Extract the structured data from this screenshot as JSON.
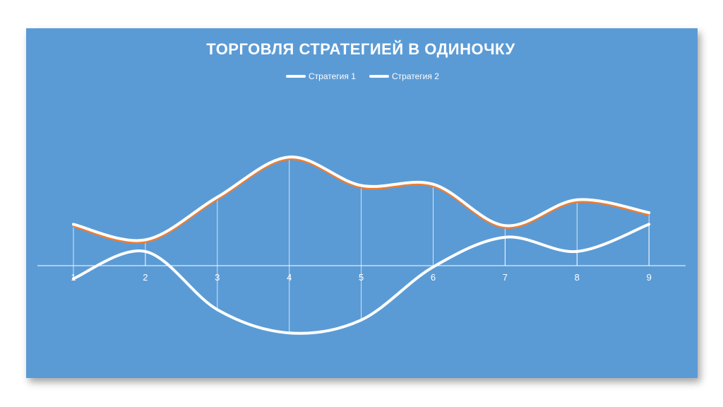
{
  "chart_data": {
    "type": "line",
    "title": "ТОРГОВЛЯ СТРАТЕГИЕЙ В ОДИНОЧКУ",
    "categories": [
      "1",
      "2",
      "3",
      "4",
      "5",
      "6",
      "7",
      "8",
      "9"
    ],
    "series": [
      {
        "name": "Стратегия 1",
        "values": [
          3.2,
          2.0,
          5.3,
          8.4,
          6.2,
          6.3,
          3.1,
          5.1,
          4.1
        ]
      },
      {
        "name": "Стратегия 2",
        "values": [
          -1.0,
          1.1,
          -3.4,
          -5.2,
          -4.2,
          -0.1,
          2.2,
          1.1,
          3.2
        ]
      }
    ],
    "xlabel": "",
    "ylabel": "",
    "ylim": [
      -6,
      12
    ],
    "smooth": true,
    "drop_lines": true,
    "grid": false,
    "legend_position": "top",
    "colors": {
      "background": "#5b9bd5",
      "line": "#ffffff",
      "series1_shadow": "#ed7d31",
      "axis": "#ffffff",
      "text": "#ffffff"
    }
  }
}
